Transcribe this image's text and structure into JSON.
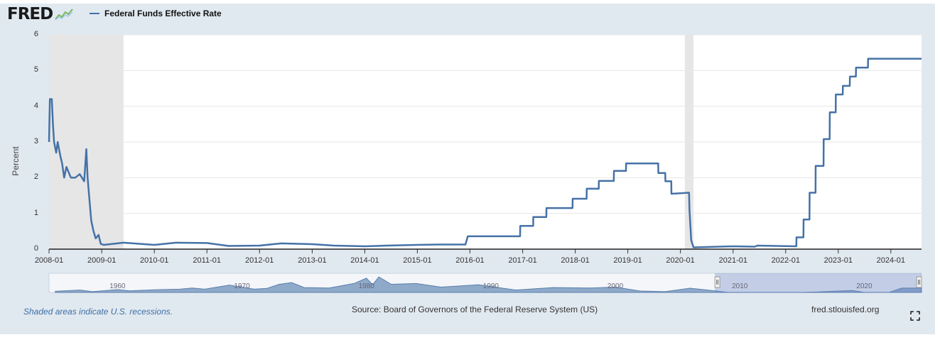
{
  "header": {
    "logo_text": "FRED",
    "legend_label": "Federal Funds Effective Rate"
  },
  "footer": {
    "recession_note": "Shaded areas indicate U.S. recessions.",
    "source": "Source: Board of Governors of the Federal Reserve System (US)",
    "url": "fred.stlouisfed.org"
  },
  "icons": {
    "logo_graph": "fred-logo-graph-icon",
    "fullscreen": "fullscreen-icon"
  },
  "chart_data": {
    "type": "line",
    "title": "",
    "xlabel": "",
    "ylabel": "Percent",
    "xlim": [
      "2008-01-01",
      "2024-08-01"
    ],
    "ylim": [
      0,
      6
    ],
    "y_ticks": [
      0,
      1,
      2,
      3,
      4,
      5,
      6
    ],
    "x_ticks": [
      "2008-01",
      "2009-01",
      "2010-01",
      "2011-01",
      "2012-01",
      "2013-01",
      "2014-01",
      "2015-01",
      "2016-01",
      "2017-01",
      "2018-01",
      "2019-01",
      "2020-01",
      "2021-01",
      "2022-01",
      "2023-01",
      "2024-01"
    ],
    "grid": true,
    "legend": "top-left",
    "line_color": "#4572a7",
    "recession_shading": [
      {
        "start": "2008-01-01",
        "end": "2009-06-01"
      },
      {
        "start": "2020-02-01",
        "end": "2020-04-01"
      }
    ],
    "series": [
      {
        "name": "Federal Funds Effective Rate",
        "points": [
          [
            "2008-01-01",
            3.0
          ],
          [
            "2008-01-07",
            4.2
          ],
          [
            "2008-01-20",
            4.2
          ],
          [
            "2008-01-28",
            3.5
          ],
          [
            "2008-02-05",
            3.0
          ],
          [
            "2008-02-20",
            2.7
          ],
          [
            "2008-03-01",
            3.0
          ],
          [
            "2008-03-20",
            2.6
          ],
          [
            "2008-04-01",
            2.4
          ],
          [
            "2008-04-15",
            2.0
          ],
          [
            "2008-05-01",
            2.3
          ],
          [
            "2008-06-01",
            2.0
          ],
          [
            "2008-07-01",
            2.0
          ],
          [
            "2008-08-01",
            2.1
          ],
          [
            "2008-09-01",
            1.9
          ],
          [
            "2008-09-16",
            2.8
          ],
          [
            "2008-09-25",
            2.0
          ],
          [
            "2008-10-05",
            1.5
          ],
          [
            "2008-10-20",
            0.8
          ],
          [
            "2008-11-05",
            0.5
          ],
          [
            "2008-11-20",
            0.3
          ],
          [
            "2008-12-10",
            0.4
          ],
          [
            "2008-12-25",
            0.15
          ],
          [
            "2009-01-15",
            0.12
          ],
          [
            "2009-06-01",
            0.18
          ],
          [
            "2010-01-01",
            0.12
          ],
          [
            "2010-06-01",
            0.18
          ],
          [
            "2011-01-01",
            0.17
          ],
          [
            "2011-06-01",
            0.09
          ],
          [
            "2012-01-01",
            0.1
          ],
          [
            "2012-06-01",
            0.16
          ],
          [
            "2013-01-01",
            0.14
          ],
          [
            "2013-06-01",
            0.1
          ],
          [
            "2014-01-01",
            0.08
          ],
          [
            "2014-06-01",
            0.1
          ],
          [
            "2015-01-01",
            0.12
          ],
          [
            "2015-06-01",
            0.13
          ],
          [
            "2015-12-01",
            0.13
          ],
          [
            "2015-12-17",
            0.36
          ],
          [
            "2016-12-14",
            0.36
          ],
          [
            "2016-12-15",
            0.65
          ],
          [
            "2017-03-15",
            0.65
          ],
          [
            "2017-03-16",
            0.9
          ],
          [
            "2017-06-14",
            0.9
          ],
          [
            "2017-06-15",
            1.15
          ],
          [
            "2017-12-13",
            1.15
          ],
          [
            "2017-12-14",
            1.41
          ],
          [
            "2018-03-21",
            1.41
          ],
          [
            "2018-03-22",
            1.69
          ],
          [
            "2018-06-13",
            1.69
          ],
          [
            "2018-06-14",
            1.91
          ],
          [
            "2018-09-26",
            1.91
          ],
          [
            "2018-09-27",
            2.19
          ],
          [
            "2018-12-19",
            2.19
          ],
          [
            "2018-12-20",
            2.4
          ],
          [
            "2019-07-31",
            2.4
          ],
          [
            "2019-08-01",
            2.13
          ],
          [
            "2019-09-18",
            2.13
          ],
          [
            "2019-09-19",
            1.9
          ],
          [
            "2019-10-30",
            1.9
          ],
          [
            "2019-10-31",
            1.55
          ],
          [
            "2020-03-01",
            1.58
          ],
          [
            "2020-03-04",
            1.1
          ],
          [
            "2020-03-16",
            0.25
          ],
          [
            "2020-04-01",
            0.05
          ],
          [
            "2021-01-01",
            0.08
          ],
          [
            "2021-06-01",
            0.07
          ],
          [
            "2021-06-17",
            0.1
          ],
          [
            "2022-03-16",
            0.08
          ],
          [
            "2022-03-17",
            0.33
          ],
          [
            "2022-05-04",
            0.33
          ],
          [
            "2022-05-05",
            0.83
          ],
          [
            "2022-06-15",
            0.83
          ],
          [
            "2022-06-16",
            1.58
          ],
          [
            "2022-07-27",
            1.58
          ],
          [
            "2022-07-28",
            2.33
          ],
          [
            "2022-09-21",
            2.33
          ],
          [
            "2022-09-22",
            3.08
          ],
          [
            "2022-11-02",
            3.08
          ],
          [
            "2022-11-03",
            3.83
          ],
          [
            "2022-12-14",
            3.83
          ],
          [
            "2022-12-15",
            4.33
          ],
          [
            "2023-02-01",
            4.33
          ],
          [
            "2023-02-02",
            4.57
          ],
          [
            "2023-03-22",
            4.57
          ],
          [
            "2023-03-23",
            4.83
          ],
          [
            "2023-05-03",
            4.83
          ],
          [
            "2023-05-04",
            5.08
          ],
          [
            "2023-07-26",
            5.08
          ],
          [
            "2023-07-27",
            5.33
          ],
          [
            "2024-08-01",
            5.33
          ]
        ]
      }
    ]
  },
  "navigator": {
    "tick_labels": [
      "1960",
      "1970",
      "1980",
      "1990",
      "2000",
      "2010",
      "2020"
    ],
    "xlim": [
      1954.5,
      2024.6
    ],
    "selected_range": [
      2008.0,
      2024.6
    ],
    "series_values": [
      [
        1955,
        1.5
      ],
      [
        1957,
        3.0
      ],
      [
        1958,
        1.0
      ],
      [
        1960,
        3.5
      ],
      [
        1961,
        2.0
      ],
      [
        1963,
        3.2
      ],
      [
        1965,
        4.0
      ],
      [
        1966,
        5.5
      ],
      [
        1967,
        4.0
      ],
      [
        1969,
        9.0
      ],
      [
        1971,
        4.0
      ],
      [
        1972,
        5.0
      ],
      [
        1973,
        10.0
      ],
      [
        1974,
        12.0
      ],
      [
        1975,
        6.0
      ],
      [
        1977,
        5.5
      ],
      [
        1979,
        11.0
      ],
      [
        1980,
        17.5
      ],
      [
        1980.5,
        9.5
      ],
      [
        1981,
        19.0
      ],
      [
        1982,
        10.0
      ],
      [
        1984,
        11.0
      ],
      [
        1986,
        6.5
      ],
      [
        1989,
        9.5
      ],
      [
        1992,
        3.0
      ],
      [
        1995,
        6.0
      ],
      [
        1998,
        5.5
      ],
      [
        2000,
        6.5
      ],
      [
        2002,
        1.7
      ],
      [
        2004,
        1.0
      ],
      [
        2006,
        5.2
      ],
      [
        2008,
        2.0
      ],
      [
        2009,
        0.15
      ],
      [
        2015,
        0.1
      ],
      [
        2016,
        0.4
      ],
      [
        2019,
        2.4
      ],
      [
        2020,
        0.05
      ],
      [
        2022,
        0.1
      ],
      [
        2023,
        5.3
      ],
      [
        2024.6,
        5.33
      ]
    ]
  }
}
